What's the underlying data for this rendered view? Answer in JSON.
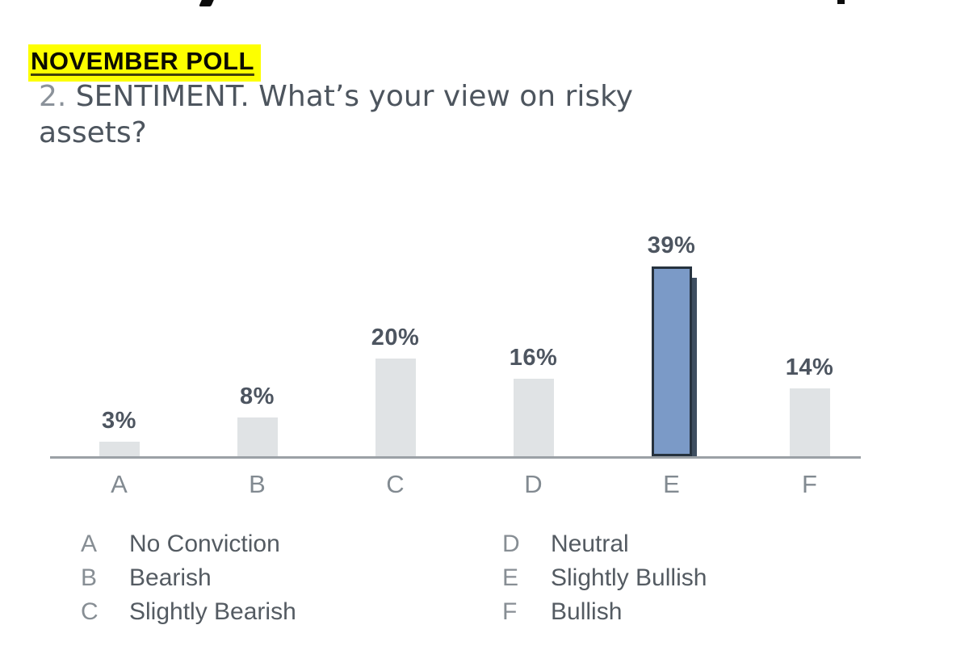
{
  "header": {
    "highlight_label": "NOVEMBER POLL",
    "highlight_color": "#fdff00",
    "question_number": "2.",
    "question_text": " SENTIMENT. What’s your view on risky assets?"
  },
  "chart_data": {
    "type": "bar",
    "categories": [
      "A",
      "B",
      "C",
      "D",
      "E",
      "F"
    ],
    "values": [
      3,
      8,
      20,
      16,
      39,
      14
    ],
    "value_labels": [
      "3%",
      "8%",
      "20%",
      "16%",
      "39%",
      "14%"
    ],
    "highlighted_index": 4,
    "highlighted_category": "E",
    "title": "2. SENTIMENT. What’s your view on risky assets?",
    "xlabel": "",
    "ylabel": "",
    "ylim": [
      0,
      40
    ],
    "grid": false,
    "legend_position": "below",
    "bar_color": "#e0e3e5",
    "highlight_bar_color": "#7b9ac7",
    "highlight_bar_border": "#26323e",
    "axis_line_color": "#9ba1a6"
  },
  "legend": {
    "items": [
      {
        "key": "A",
        "label": "No Conviction"
      },
      {
        "key": "B",
        "label": "Bearish"
      },
      {
        "key": "C",
        "label": "Slightly Bearish"
      },
      {
        "key": "D",
        "label": "Neutral"
      },
      {
        "key": "E",
        "label": "Slightly Bullish"
      },
      {
        "key": "F",
        "label": "Bullish"
      }
    ]
  }
}
